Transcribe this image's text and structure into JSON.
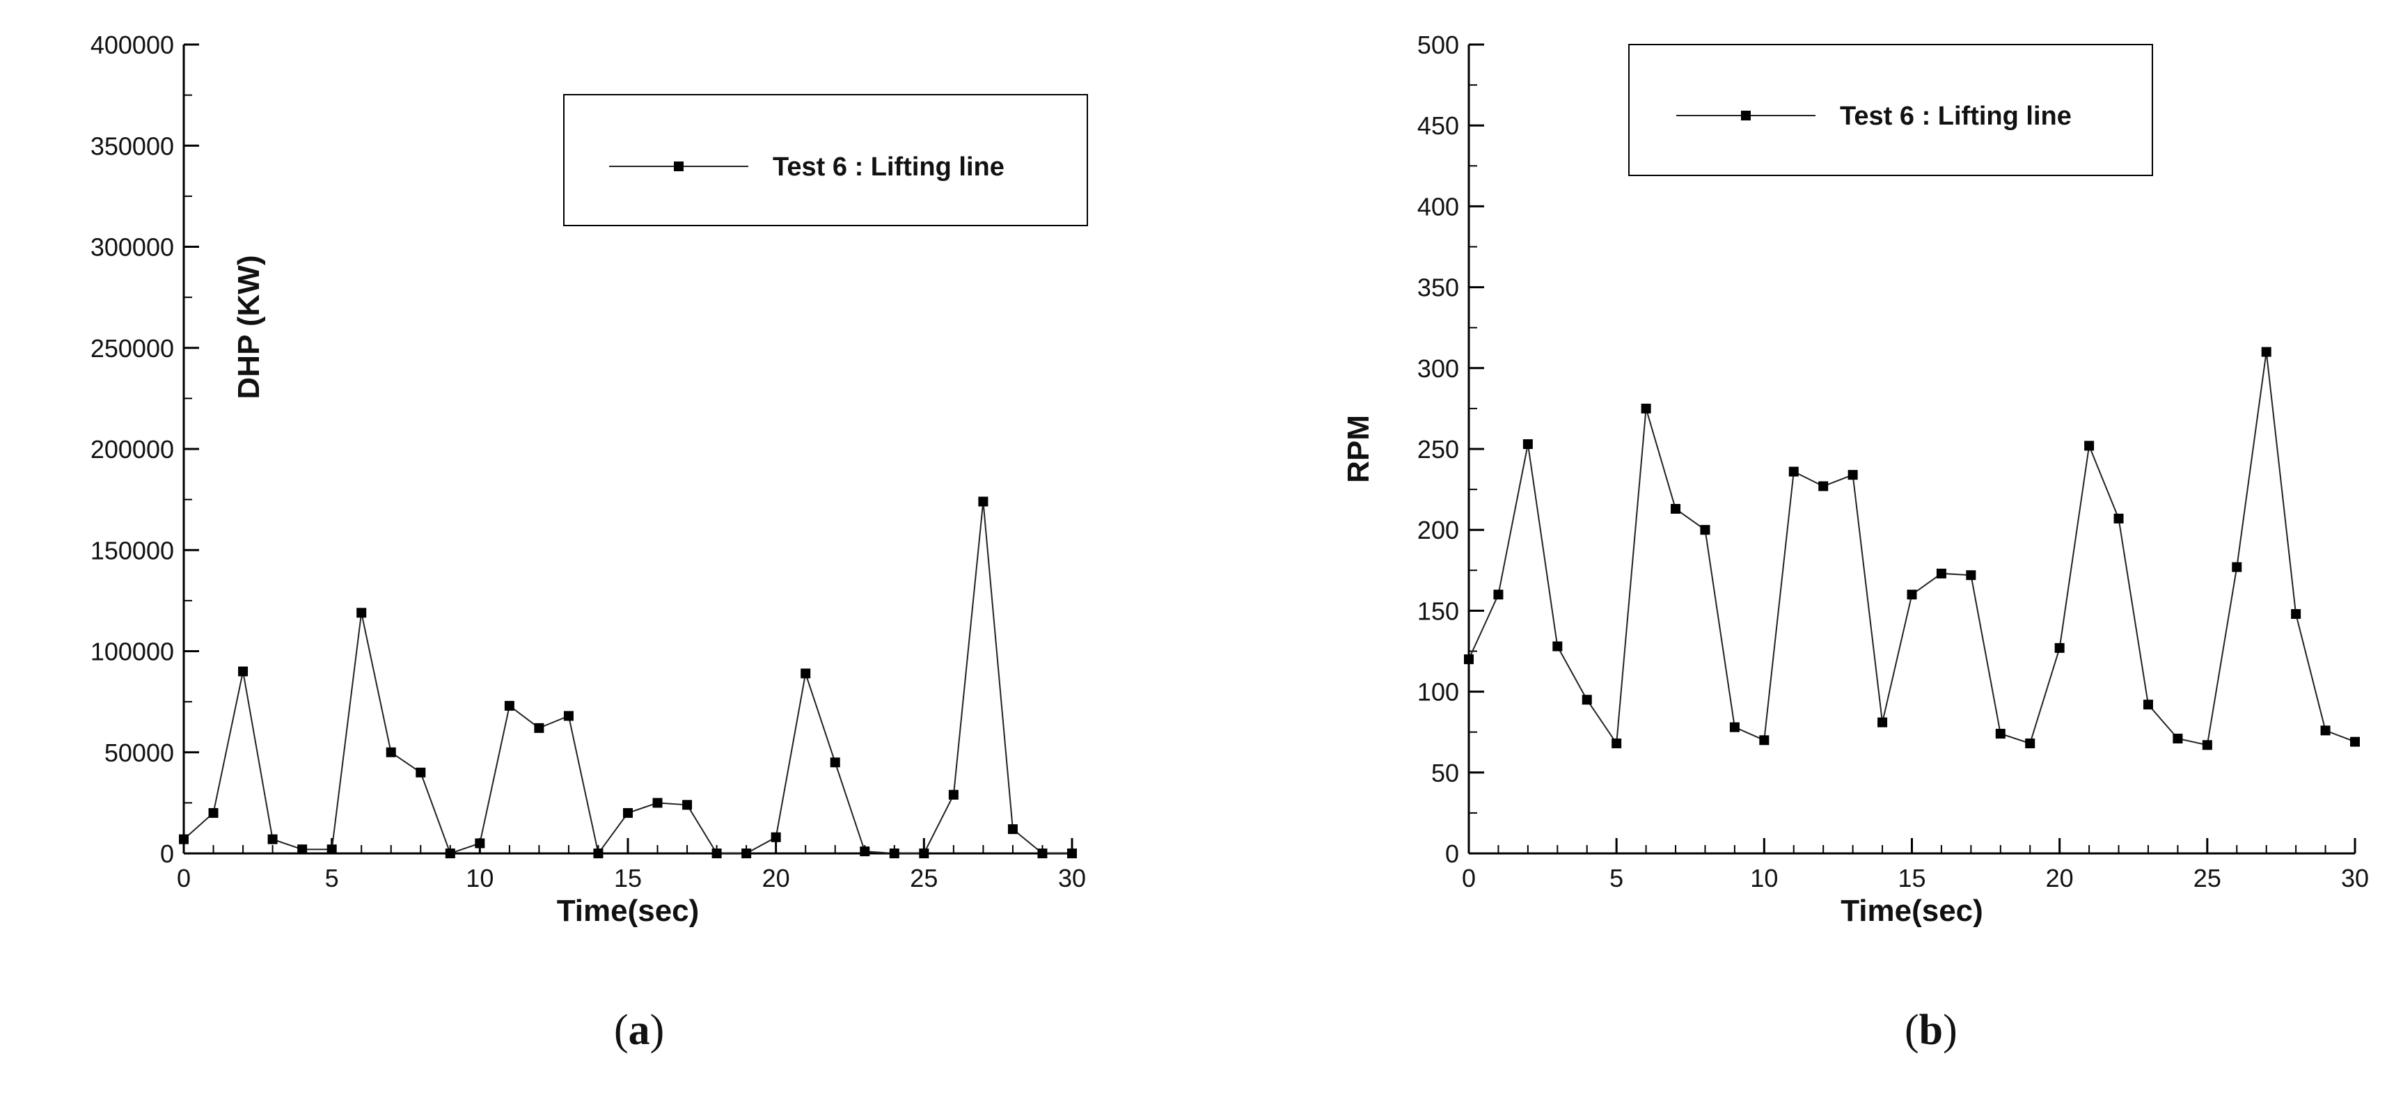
{
  "chart_data": [
    {
      "type": "line",
      "panel_label": "a",
      "xlabel": "Time(sec)",
      "ylabel": "DHP (KW)",
      "xlim": [
        0,
        30
      ],
      "ylim": [
        0,
        400000
      ],
      "x_ticks": [
        "0",
        "5",
        "10",
        "15",
        "20",
        "25",
        "30"
      ],
      "y_ticks": [
        "0",
        "50000",
        "100000",
        "150000",
        "200000",
        "250000",
        "300000",
        "350000",
        "400000"
      ],
      "legend_position": "top-right",
      "series": [
        {
          "name": "Test 6 : Lifting line",
          "marker": "square",
          "x": [
            0,
            1,
            2,
            3,
            4,
            5,
            6,
            7,
            8,
            9,
            10,
            11,
            12,
            13,
            14,
            15,
            16,
            17,
            18,
            19,
            20,
            21,
            22,
            23,
            24,
            25,
            26,
            27,
            28,
            29,
            30
          ],
          "values": [
            7000,
            20000,
            90000,
            7000,
            2000,
            2000,
            119000,
            50000,
            40000,
            0,
            5000,
            73000,
            62000,
            68000,
            0,
            20000,
            25000,
            24000,
            0,
            0,
            8000,
            89000,
            45000,
            1000,
            0,
            0,
            29000,
            174000,
            12000,
            0,
            0
          ]
        }
      ]
    },
    {
      "type": "line",
      "panel_label": "b",
      "xlabel": "Time(sec)",
      "ylabel": "RPM",
      "xlim": [
        0,
        30
      ],
      "ylim": [
        0,
        500
      ],
      "x_ticks": [
        "0",
        "5",
        "10",
        "15",
        "20",
        "25",
        "30"
      ],
      "y_ticks": [
        "0",
        "50",
        "100",
        "150",
        "200",
        "250",
        "300",
        "350",
        "400",
        "450",
        "500"
      ],
      "legend_position": "top-right",
      "series": [
        {
          "name": "Test 6 : Lifting line",
          "marker": "square",
          "x": [
            0,
            1,
            2,
            3,
            4,
            5,
            6,
            7,
            8,
            9,
            10,
            11,
            12,
            13,
            14,
            15,
            16,
            17,
            18,
            19,
            20,
            21,
            22,
            23,
            24,
            25,
            26,
            27,
            28,
            29,
            30
          ],
          "values": [
            120,
            160,
            253,
            128,
            95,
            68,
            275,
            213,
            200,
            78,
            70,
            236,
            227,
            234,
            81,
            160,
            173,
            172,
            74,
            68,
            127,
            252,
            207,
            92,
            71,
            67,
            177,
            310,
            148,
            76,
            69
          ]
        }
      ]
    }
  ]
}
